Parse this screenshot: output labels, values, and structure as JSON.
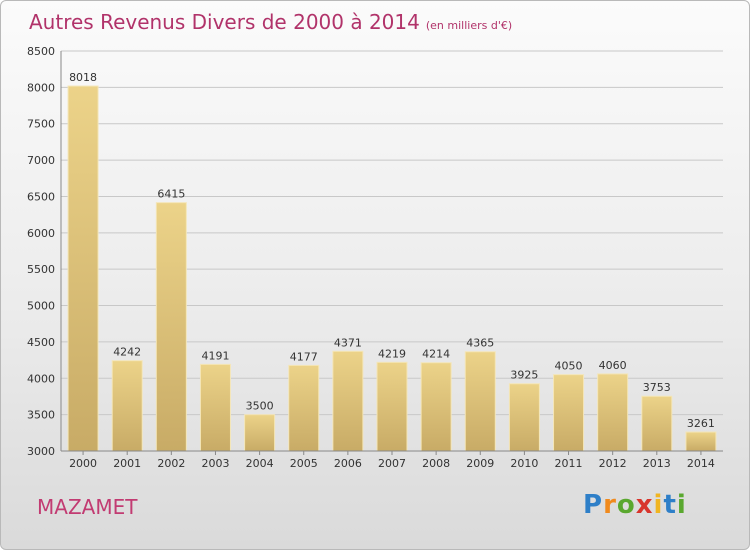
{
  "title": "Autres Revenus Divers de 2000 à 2014",
  "subtitle": "(en milliers d'€)",
  "location": "MAZAMET",
  "logo": {
    "letters": [
      "P",
      "r",
      "o",
      "x",
      "i",
      "t",
      "i"
    ],
    "colors": [
      "#2e7fc8",
      "#f08a1d",
      "#5aa82f",
      "#d8352c",
      "#f0b521",
      "#2e7fc8",
      "#5aa82f"
    ]
  },
  "chart_data": {
    "type": "bar",
    "categories": [
      "2000",
      "2001",
      "2002",
      "2003",
      "2004",
      "2005",
      "2006",
      "2007",
      "2008",
      "2009",
      "2010",
      "2011",
      "2012",
      "2013",
      "2014"
    ],
    "values": [
      8018,
      4242,
      6415,
      4191,
      3500,
      4177,
      4371,
      4219,
      4214,
      4365,
      3925,
      4050,
      4060,
      3753,
      3261
    ],
    "ylim": [
      3000,
      8500
    ],
    "yticks": [
      3000,
      3500,
      4000,
      4500,
      5000,
      5500,
      6000,
      6500,
      7000,
      7500,
      8000,
      8500
    ],
    "grid": true,
    "bar_color": "#ecd389",
    "bar_color_dark": "#c8ab66",
    "grid_color": "#c8c8c8",
    "title_color": "#b1336a"
  }
}
